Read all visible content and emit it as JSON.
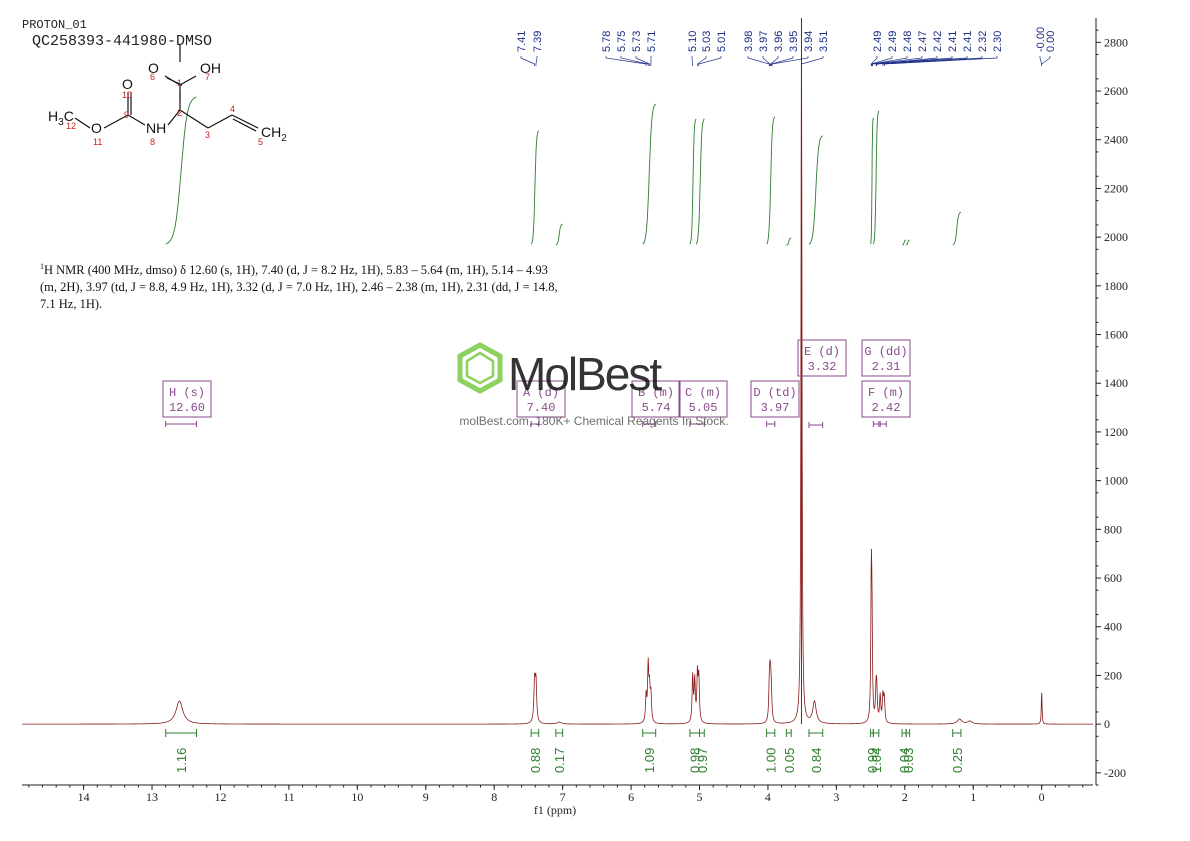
{
  "header": {
    "sample_id": "PROTON_01",
    "sample_name": "QC258393-441980-DMSO"
  },
  "structure": {
    "atoms": [
      "O",
      "OH",
      "H3C",
      "O",
      "NH",
      "CH2",
      "O"
    ],
    "atom_numbers": [
      "1",
      "2",
      "3",
      "4",
      "5",
      "6",
      "7",
      "8",
      "9",
      "10",
      "11",
      "12"
    ]
  },
  "nmr_description": {
    "line1": "H NMR (400 MHz, dmso) δ 12.60 (s, 1H), 7.40 (d, J = 8.2 Hz, 1H), 5.83 – 5.64 (m, 1H), 5.14 – 4.93",
    "line2": "(m, 2H), 3.97 (td, J = 8.8, 4.9 Hz, 1H), 3.32 (d, J = 7.0 Hz, 1H), 2.46 – 2.38 (m, 1H), 2.31 (dd, J = 14.8,",
    "line3": "7.1 Hz, 1H).",
    "superscript": "1"
  },
  "watermark": {
    "brand": "MolBest",
    "tagline": "molBest.com, 180K+ Chemical Reagents In Stock."
  },
  "chart_data": {
    "type": "line",
    "xlabel": "f1 (ppm)",
    "x_reversed": true,
    "xlim": [
      14.9,
      -0.75
    ],
    "ylim": [
      -250,
      2900
    ],
    "x_ticks": [
      14,
      13,
      12,
      11,
      10,
      9,
      8,
      7,
      6,
      5,
      4,
      3,
      2,
      1,
      0
    ],
    "y_ticks": [
      -200,
      0,
      200,
      400,
      600,
      800,
      1000,
      1200,
      1400,
      1600,
      1800,
      2000,
      2200,
      2400,
      2600,
      2800
    ],
    "spectrum_peaks": [
      {
        "ppm": 12.6,
        "height": 95,
        "width": 0.06
      },
      {
        "ppm": 7.41,
        "height": 165,
        "width": 0.012
      },
      {
        "ppm": 7.39,
        "height": 165,
        "width": 0.012
      },
      {
        "ppm": 7.05,
        "height": 8,
        "width": 0.04
      },
      {
        "ppm": 5.78,
        "height": 110,
        "width": 0.01
      },
      {
        "ppm": 5.75,
        "height": 230,
        "width": 0.01
      },
      {
        "ppm": 5.73,
        "height": 130,
        "width": 0.01
      },
      {
        "ppm": 5.71,
        "height": 110,
        "width": 0.01
      },
      {
        "ppm": 5.1,
        "height": 190,
        "width": 0.01
      },
      {
        "ppm": 5.07,
        "height": 170,
        "width": 0.01
      },
      {
        "ppm": 5.03,
        "height": 195,
        "width": 0.01
      },
      {
        "ppm": 5.01,
        "height": 175,
        "width": 0.01
      },
      {
        "ppm": 3.98,
        "height": 120,
        "width": 0.01
      },
      {
        "ppm": 3.97,
        "height": 130,
        "width": 0.01
      },
      {
        "ppm": 3.96,
        "height": 115,
        "width": 0.01
      },
      {
        "ppm": 3.95,
        "height": 80,
        "width": 0.01
      },
      {
        "ppm": 3.51,
        "height": 3000,
        "width": 0.008
      },
      {
        "ppm": 3.32,
        "height": 90,
        "width": 0.03
      },
      {
        "ppm": 2.49,
        "height": 560,
        "width": 0.008
      },
      {
        "ppm": 2.48,
        "height": 380,
        "width": 0.008
      },
      {
        "ppm": 2.42,
        "height": 120,
        "width": 0.01
      },
      {
        "ppm": 2.41,
        "height": 110,
        "width": 0.01
      },
      {
        "ppm": 2.36,
        "height": 110,
        "width": 0.01
      },
      {
        "ppm": 2.32,
        "height": 110,
        "width": 0.01
      },
      {
        "ppm": 2.3,
        "height": 100,
        "width": 0.01
      },
      {
        "ppm": 1.2,
        "height": 20,
        "width": 0.04
      },
      {
        "ppm": 1.05,
        "height": 12,
        "width": 0.04
      },
      {
        "ppm": 0.0,
        "height": 140,
        "width": 0.006
      }
    ],
    "peak_labels": [
      "7.41",
      "7.39",
      "5.78",
      "5.75",
      "5.73",
      "5.71",
      "5.10",
      "5.03",
      "5.01",
      "3.98",
      "3.97",
      "3.96",
      "3.95",
      "3.94",
      "3.51",
      "2.49",
      "2.49",
      "2.48",
      "2.47",
      "2.42",
      "2.41",
      "2.41",
      "2.32",
      "2.30",
      "-0.00",
      "0.00",
      "12.60"
    ],
    "multiplets": [
      {
        "name": "H (s)",
        "ppm": "12.60",
        "range": [
          12.35,
          12.8
        ]
      },
      {
        "name": "A (d)",
        "ppm": "7.40",
        "range": [
          7.35,
          7.46
        ]
      },
      {
        "name": "B (m)",
        "ppm": "5.74",
        "range": [
          5.64,
          5.83
        ]
      },
      {
        "name": "C (m)",
        "ppm": "5.05",
        "range": [
          4.93,
          5.14
        ]
      },
      {
        "name": "D (td)",
        "ppm": "3.97",
        "range": [
          3.9,
          4.02
        ]
      },
      {
        "name": "E (d)",
        "ppm": "3.32",
        "range": [
          3.2,
          3.4
        ]
      },
      {
        "name": "G (dd)",
        "ppm": "2.31",
        "range": [
          2.27,
          2.36
        ]
      },
      {
        "name": "F (m)",
        "ppm": "2.42",
        "range": [
          2.38,
          2.46
        ]
      }
    ],
    "integrals": [
      {
        "value": "1.16",
        "range": [
          12.35,
          12.8
        ]
      },
      {
        "value": "0.88",
        "range": [
          7.35,
          7.46
        ]
      },
      {
        "value": "0.17",
        "range": [
          7.0,
          7.1
        ]
      },
      {
        "value": "1.09",
        "range": [
          5.64,
          5.83
        ]
      },
      {
        "value": "0.98",
        "range": [
          5.0,
          5.14
        ]
      },
      {
        "value": "0.97",
        "range": [
          4.93,
          5.0
        ]
      },
      {
        "value": "1.00",
        "range": [
          3.9,
          4.02
        ]
      },
      {
        "value": "0.05",
        "range": [
          3.66,
          3.73
        ]
      },
      {
        "value": "0.84",
        "range": [
          3.2,
          3.4
        ]
      },
      {
        "value": "0.99",
        "range": [
          2.46,
          2.5
        ]
      },
      {
        "value": "1.04",
        "range": [
          2.38,
          2.46
        ]
      },
      {
        "value": "0.04",
        "range": [
          1.98,
          2.04
        ]
      },
      {
        "value": "0.03",
        "range": [
          1.93,
          1.98
        ]
      },
      {
        "value": "0.25",
        "range": [
          1.18,
          1.3
        ]
      }
    ],
    "colors": {
      "spectrum": "#8b1a1a",
      "integral": "#2e7d2e",
      "multiplet_box": "#8a4a8a",
      "peak_label": "#1c2e86",
      "solvent_line": "#8b1a1a"
    }
  }
}
